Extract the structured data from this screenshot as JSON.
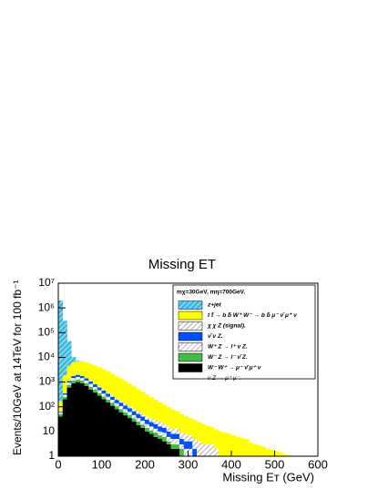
{
  "chart_data": {
    "type": "stacked_histogram",
    "title": "Missing ET",
    "xlabel": "Missing Eᴛ (GeV)",
    "ylabel": "Events/10GeV at 14TeV for 100 fb⁻¹",
    "log_y": true,
    "xlim": [
      0,
      600
    ],
    "ylim": [
      1,
      10000000
    ],
    "xticks": [
      0,
      100,
      200,
      300,
      400,
      500,
      600
    ],
    "yticks": [
      1,
      10,
      {
        "value": 100,
        "label": "10²"
      },
      {
        "value": 1000,
        "label": "10³"
      },
      {
        "value": 10000,
        "label": "10⁴"
      },
      {
        "value": 100000,
        "label": "10⁵"
      },
      {
        "value": 1000000,
        "label": "10⁶"
      },
      {
        "value": 10000000,
        "label": "10⁷"
      }
    ],
    "bins": [
      0,
      10,
      20,
      30,
      40,
      50,
      60,
      70,
      80,
      90,
      100,
      110,
      120,
      130,
      140,
      150,
      160,
      170,
      180,
      190,
      200,
      210,
      220,
      230,
      240,
      250,
      260,
      270,
      280,
      290,
      300,
      310,
      320,
      330,
      340,
      350,
      360,
      370,
      380,
      390,
      400,
      410,
      420,
      430,
      440,
      450,
      460,
      470,
      480,
      490,
      500,
      510,
      520,
      530,
      540,
      550,
      560,
      570,
      580,
      590,
      600
    ],
    "legend_header": "mχ=30GeV, mη=700GeV.",
    "legend_note": "ν Z → μ⁺ μ⁻.",
    "series": [
      {
        "name": "W⁻ W⁺ → μ⁻ ν̄ μ⁺ ν",
        "color": "#000000",
        "hatch": false,
        "values": [
          40,
          200,
          600,
          900,
          1000,
          900,
          700,
          500,
          380,
          280,
          200,
          150,
          110,
          80,
          60,
          45,
          35,
          25,
          18,
          14,
          10,
          8,
          6,
          5,
          4,
          3,
          2,
          2,
          1,
          1,
          1,
          0,
          0,
          0,
          0,
          0,
          0,
          0,
          0,
          0,
          0,
          0,
          0,
          0,
          0,
          0,
          0,
          0,
          0,
          0,
          0,
          0,
          0,
          0,
          0,
          0,
          0,
          0,
          0,
          0
        ]
      },
      {
        "name": "W⁻ Z → l⁻ ν̄ Z.",
        "color": "#44bb44",
        "hatch": false,
        "values": [
          10,
          50,
          150,
          250,
          280,
          250,
          200,
          150,
          110,
          80,
          60,
          45,
          35,
          25,
          20,
          15,
          12,
          9,
          7,
          5,
          4,
          3,
          3,
          2,
          2,
          1,
          1,
          1,
          1,
          0,
          0,
          0,
          0,
          0,
          0,
          0,
          0,
          0,
          0,
          0,
          0,
          0,
          0,
          0,
          0,
          0,
          0,
          0,
          0,
          0,
          0,
          0,
          0,
          0,
          0,
          0,
          0,
          0,
          0,
          0
        ]
      },
      {
        "name": "W⁺ Z → l⁺ ν Z.",
        "color": "#999999",
        "hatch": true,
        "values": [
          10,
          60,
          200,
          300,
          330,
          300,
          250,
          190,
          140,
          110,
          80,
          60,
          45,
          35,
          27,
          20,
          16,
          12,
          10,
          8,
          6,
          5,
          4,
          3,
          3,
          2,
          2,
          2,
          1,
          1,
          1,
          1,
          0,
          0,
          0,
          0,
          0,
          0,
          0,
          0,
          0,
          0,
          0,
          0,
          0,
          0,
          0,
          0,
          0,
          0,
          0,
          0,
          0,
          0,
          0,
          0,
          0,
          0,
          0,
          0
        ]
      },
      {
        "name": "ν̄ ν Z.",
        "color": "#0050ff",
        "hatch": false,
        "values": [
          5,
          40,
          150,
          300,
          350,
          330,
          280,
          230,
          180,
          140,
          110,
          85,
          65,
          50,
          40,
          32,
          25,
          20,
          16,
          13,
          10,
          8,
          7,
          6,
          5,
          4,
          3,
          3,
          2,
          2,
          2,
          1,
          1,
          1,
          1,
          1,
          0,
          0,
          0,
          0,
          0,
          0,
          0,
          0,
          0,
          0,
          0,
          0,
          0,
          0,
          0,
          0,
          0,
          0,
          0,
          0,
          0,
          0,
          0,
          0
        ]
      },
      {
        "name": "χ χ Z (signal).",
        "color": "#888888",
        "hatch": true,
        "values": [
          1,
          5,
          15,
          30,
          40,
          45,
          45,
          42,
          40,
          37,
          34,
          31,
          28,
          25,
          22,
          20,
          18,
          16,
          14,
          12,
          11,
          10,
          9,
          8,
          7,
          6,
          5,
          5,
          4,
          4,
          3,
          3,
          3,
          2,
          2,
          2,
          2,
          1,
          1,
          1,
          1,
          1,
          1,
          1,
          0,
          0,
          0,
          0,
          0,
          0,
          0,
          0,
          0,
          0,
          0,
          0,
          0,
          0,
          0,
          0
        ]
      },
      {
        "name": "t t̄ → b b̄ W⁺ W⁻ → b b̄ μ⁻ ν̄ μ⁺ ν",
        "color": "#ffff00",
        "hatch": false,
        "values": [
          100,
          1500,
          3500,
          4500,
          5000,
          5000,
          4700,
          4300,
          3800,
          3300,
          2800,
          2300,
          1900,
          1500,
          1200,
          950,
          750,
          580,
          450,
          350,
          270,
          210,
          165,
          130,
          100,
          80,
          64,
          52,
          42,
          34,
          28,
          24,
          20,
          17,
          14,
          12,
          10,
          9,
          8,
          7,
          6,
          5,
          4.5,
          4,
          3.5,
          3,
          2.7,
          2.4,
          2,
          1.8,
          1.6,
          1.4,
          1.2,
          1.1,
          1,
          1,
          0.8,
          0.7,
          1,
          0.6
        ]
      },
      {
        "name": "z+jet",
        "color": "#66d9f2",
        "hatch": true,
        "values": [
          2000000,
          300000,
          40000,
          4000,
          500,
          100,
          30,
          10,
          5,
          2,
          1,
          0,
          0,
          0,
          0,
          0,
          0,
          0,
          0,
          0,
          0,
          0,
          0,
          0,
          0,
          0,
          0,
          0,
          0,
          0,
          0,
          0,
          0,
          0,
          0,
          0,
          0,
          0,
          0,
          0,
          0,
          0,
          0,
          0,
          0,
          0,
          0,
          0,
          0,
          0,
          0,
          0,
          0,
          0,
          0,
          0,
          0,
          0,
          0,
          0
        ]
      }
    ]
  }
}
